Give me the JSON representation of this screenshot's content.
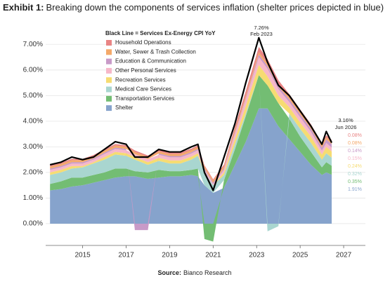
{
  "chart_data": {
    "type": "stacked-area",
    "title_label": "Exhibit 1:",
    "title": "Breaking down the components of services inflation (shelter prices depicted in blue)",
    "legend_title": "Black Line = Services Ex-Energy CPI YoY",
    "source_label": "Source:",
    "source": "Bianco Research",
    "peak_label": "7.26%",
    "peak_date": "Feb 2023",
    "last_label": "3.16%",
    "last_date": "Jun 2026",
    "xlim": [
      2013.3,
      2028
    ],
    "xticks": [
      2015,
      2017,
      2019,
      2021,
      2023,
      2025,
      2027
    ],
    "ylim": [
      -0.85,
      7.5
    ],
    "yticks": [
      {
        "value": 0,
        "label": "0.00%"
      },
      {
        "value": 1,
        "label": "1.00%"
      },
      {
        "value": 2,
        "label": "2.00%"
      },
      {
        "value": 3,
        "label": "3.00%"
      },
      {
        "value": 4,
        "label": "4.00%"
      },
      {
        "value": 5,
        "label": "5.00%"
      },
      {
        "value": 6,
        "label": "6.00%"
      },
      {
        "value": 7,
        "label": "7.00%"
      }
    ],
    "grid": true,
    "x": [
      2013.5,
      2014,
      2014.5,
      2015,
      2015.5,
      2016,
      2016.5,
      2017,
      2017.4,
      2018,
      2018.5,
      2019,
      2019.5,
      2020,
      2020.3,
      2020.6,
      2021,
      2021.5,
      2022,
      2022.5,
      2023.1,
      2023.5,
      2024,
      2024.5,
      2025,
      2025.5,
      2026,
      2026.2,
      2026.45
    ],
    "series": [
      {
        "name": "Household Operations",
        "color": "#e98585",
        "end_label": "0.08%",
        "values": [
          0.05,
          0.05,
          0.05,
          0.05,
          0.05,
          0.05,
          0.06,
          0.06,
          0.06,
          0.06,
          0.06,
          0.06,
          0.06,
          0.06,
          0.06,
          0.05,
          0.05,
          0.08,
          0.15,
          0.2,
          0.2,
          0.18,
          0.15,
          0.12,
          0.1,
          0.1,
          0.08,
          0.08,
          0.08
        ]
      },
      {
        "name": "Water, Sewer & Trash Collection",
        "color": "#f4a96a",
        "end_label": "0.08%",
        "values": [
          0.08,
          0.08,
          0.08,
          0.08,
          0.08,
          0.08,
          0.08,
          0.08,
          0.08,
          0.08,
          0.08,
          0.08,
          0.08,
          0.08,
          0.08,
          0.08,
          0.08,
          0.08,
          0.08,
          0.08,
          0.1,
          0.1,
          0.1,
          0.09,
          0.09,
          0.08,
          0.08,
          0.08,
          0.08
        ]
      },
      {
        "name": "Education & Communication",
        "color": "#c89ac8",
        "end_label": "0.14%",
        "values": [
          0.05,
          0.05,
          0.05,
          0.05,
          0.05,
          0.05,
          0.05,
          0.05,
          -0.25,
          -0.25,
          0.05,
          0.05,
          0.05,
          0.05,
          0.05,
          0.05,
          0.05,
          0.05,
          0.05,
          0.05,
          0.1,
          0.1,
          0.1,
          0.1,
          0.12,
          0.12,
          0.12,
          0.14,
          0.14
        ]
      },
      {
        "name": "Other Personal Services",
        "color": "#f6b7c9",
        "end_label": "0.15%",
        "values": [
          0.1,
          0.1,
          0.1,
          0.1,
          0.1,
          0.12,
          0.12,
          0.12,
          0.12,
          0.12,
          0.12,
          0.12,
          0.12,
          0.12,
          0.12,
          0.1,
          0.05,
          0.1,
          0.2,
          0.25,
          0.3,
          0.3,
          0.25,
          0.2,
          0.2,
          0.18,
          0.15,
          0.15,
          0.15
        ]
      },
      {
        "name": "Recreation Services",
        "color": "#f6dc72",
        "end_label": "0.24%",
        "values": [
          0.1,
          0.1,
          0.1,
          0.05,
          0.05,
          0.1,
          0.1,
          0.1,
          0.1,
          0.1,
          0.12,
          0.12,
          0.12,
          0.12,
          0.1,
          0.0,
          0.0,
          0.1,
          0.2,
          0.3,
          0.4,
          0.35,
          0.3,
          0.25,
          0.25,
          0.25,
          0.2,
          0.25,
          0.24
        ]
      },
      {
        "name": "Medical Care Services",
        "color": "#a9d6d0",
        "end_label": "0.32%",
        "values": [
          0.35,
          0.35,
          0.35,
          0.4,
          0.45,
          0.5,
          0.55,
          0.5,
          0.45,
          0.3,
          0.35,
          0.3,
          0.3,
          0.4,
          0.5,
          0.5,
          0.3,
          0.2,
          0.2,
          0.1,
          0.0,
          -0.3,
          -0.1,
          0.2,
          0.3,
          0.35,
          0.3,
          0.35,
          0.32
        ]
      },
      {
        "name": "Transportation Services",
        "color": "#73bd73",
        "end_label": "0.35%",
        "values": [
          0.25,
          0.3,
          0.35,
          0.3,
          0.3,
          0.3,
          0.35,
          0.3,
          0.2,
          0.25,
          0.3,
          0.2,
          0.2,
          0.2,
          0.3,
          -0.6,
          -0.7,
          0.3,
          0.6,
          1.0,
          1.3,
          0.9,
          0.9,
          0.8,
          0.6,
          0.5,
          0.3,
          0.4,
          0.35
        ]
      },
      {
        "name": "Shelter",
        "color": "#86a3cc",
        "end_label": "1.91%",
        "values": [
          1.3,
          1.35,
          1.45,
          1.5,
          1.6,
          1.7,
          1.8,
          1.85,
          1.85,
          1.75,
          1.8,
          1.85,
          1.85,
          1.9,
          1.85,
          1.5,
          1.2,
          1.4,
          2.3,
          3.2,
          4.5,
          4.5,
          3.8,
          3.3,
          2.8,
          2.3,
          1.9,
          2.0,
          1.91
        ]
      }
    ],
    "line": {
      "name": "Services Ex-Energy CPI YoY",
      "color": "#000000",
      "values": [
        2.3,
        2.4,
        2.6,
        2.5,
        2.6,
        2.9,
        3.2,
        3.1,
        2.6,
        2.6,
        2.9,
        2.8,
        2.8,
        3.0,
        3.1,
        2.0,
        1.3,
        2.6,
        3.9,
        5.5,
        7.26,
        6.3,
        5.4,
        5.0,
        4.4,
        3.8,
        3.1,
        3.6,
        3.16
      ]
    }
  }
}
